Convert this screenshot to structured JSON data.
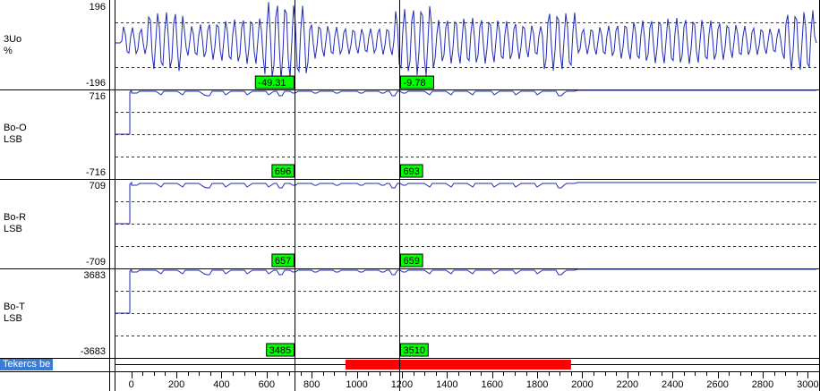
{
  "channels": [
    {
      "name": "3Uo",
      "unit": "%",
      "ymax": "196",
      "ymin": "-196",
      "cursor1": "-49.31",
      "cursor2": "-9.78"
    },
    {
      "name": "Bo-O",
      "unit": "LSB",
      "ymax": "716",
      "ymin": "-716",
      "cursor1": "696",
      "cursor2": "693"
    },
    {
      "name": "Bo-R",
      "unit": "LSB",
      "ymax": "709",
      "ymin": "-709",
      "cursor1": "657",
      "cursor2": "659"
    },
    {
      "name": "Bo-T",
      "unit": "LSB",
      "ymax": "3683",
      "ymin": "-3683",
      "cursor1": "3485",
      "cursor2": "3510"
    }
  ],
  "digital": {
    "name": "Tekercs be",
    "on_start": 950,
    "on_end": 1950,
    "color": "#ff0000"
  },
  "x_axis": {
    "min": -70,
    "max": 3050,
    "ticks": [
      "0",
      "200",
      "400",
      "600",
      "800",
      "1000",
      "1200",
      "1400",
      "1600",
      "1800",
      "2000",
      "2200",
      "2400",
      "2600",
      "2800",
      "3000"
    ],
    "cursors": [
      725,
      1190
    ]
  },
  "colors": {
    "trace": "#1f2ab8",
    "cursor_box": "#00ff00",
    "grid": "#000000"
  }
}
